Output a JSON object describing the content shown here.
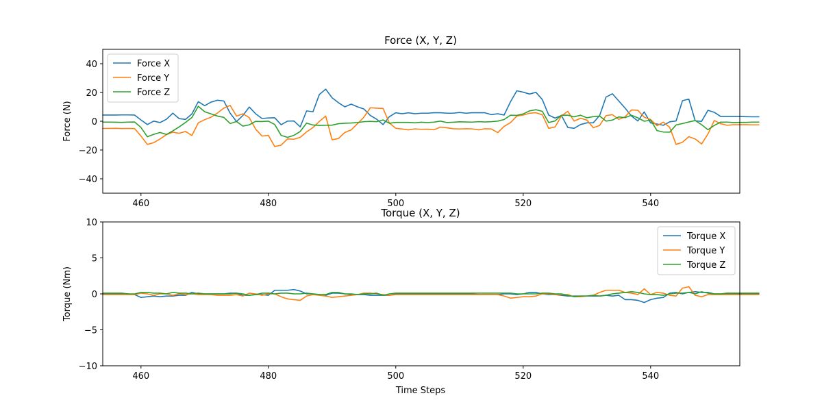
{
  "chart_data": [
    {
      "type": "line",
      "title": "Force (X, Y, Z)",
      "xlabel": "",
      "ylabel": "Force (N)",
      "xlim": [
        454,
        554
      ],
      "ylim": [
        -50,
        50
      ],
      "xticks": [
        460,
        480,
        500,
        520,
        540
      ],
      "yticks": [
        -40,
        -20,
        0,
        20,
        40
      ],
      "grid": false,
      "legend_position": "upper-left",
      "x_start": 454,
      "series": [
        {
          "name": "Force X",
          "color": "#1f77b4",
          "values": [
            4.3,
            4.3,
            4.3,
            4.4,
            4.4,
            4.3,
            0.9,
            -2.3,
            0.1,
            -0.9,
            1.4,
            5.6,
            1.8,
            1.3,
            5.1,
            13.6,
            10.8,
            13.3,
            14.6,
            14.1,
            5.6,
            -0.2,
            4.0,
            9.9,
            5.2,
            1.9,
            2.3,
            2.4,
            -2.4,
            0.1,
            0.2,
            -3.9,
            7.2,
            6.6,
            18.6,
            22.3,
            16.3,
            12.9,
            10.0,
            11.9,
            10.0,
            8.5,
            4.0,
            1.4,
            -2.3,
            3.2,
            5.9,
            5.2,
            5.9,
            5.2,
            5.6,
            5.6,
            5.9,
            5.9,
            5.6,
            5.6,
            6.1,
            5.6,
            5.9,
            5.9,
            5.9,
            4.6,
            5.2,
            4.3,
            13.5,
            21.2,
            20.2,
            18.9,
            20.1,
            15.1,
            4.3,
            2.2,
            4.0,
            -4.3,
            -4.9,
            -2.3,
            -1.1,
            -1.1,
            4.0,
            16.8,
            19.1,
            14.1,
            9.1,
            3.6,
            0.2,
            6.5,
            -1.2,
            -1.9,
            -2.8,
            -0.4,
            0.2,
            14.3,
            15.4,
            0.3,
            -0.1,
            7.6,
            6.2,
            3.3,
            3.3,
            3.3,
            3.3,
            3.2,
            3.1,
            3.1
          ]
        },
        {
          "name": "Force Y",
          "color": "#ff7f0e",
          "values": [
            -5.0,
            -5.0,
            -4.9,
            -5.1,
            -5.0,
            -5.1,
            -10.3,
            -16.1,
            -14.9,
            -12.3,
            -9.3,
            -7.6,
            -8.4,
            -7.1,
            -9.9,
            -1.1,
            1.1,
            2.8,
            5.7,
            9.1,
            11.0,
            3.6,
            5.2,
            2.5,
            -5.5,
            -10.3,
            -9.8,
            -17.6,
            -16.6,
            -12.3,
            -12.5,
            -11.2,
            -7.4,
            -4.4,
            -0.1,
            3.6,
            -12.9,
            -12.0,
            -7.8,
            -6.0,
            -1.7,
            2.9,
            9.4,
            9.1,
            8.9,
            -1.3,
            -4.9,
            -5.4,
            -6.0,
            -5.3,
            -5.6,
            -5.5,
            -5.9,
            -4.1,
            -4.5,
            -5.2,
            -5.4,
            -5.2,
            -5.3,
            -6.0,
            -5.2,
            -5.4,
            -7.9,
            -3.6,
            -1.0,
            3.6,
            4.3,
            5.6,
            5.9,
            4.5,
            -4.9,
            -4.0,
            3.7,
            6.9,
            0.1,
            2.1,
            0.8,
            -4.5,
            -2.9,
            3.9,
            4.6,
            1.3,
            3.1,
            7.9,
            7.6,
            2.8,
            1.2,
            -3.1,
            -0.6,
            -4.3,
            -16.1,
            -14.6,
            -10.7,
            -12.3,
            -15.8,
            -8.9,
            0.5,
            -1.7,
            -2.8,
            -2.4,
            -2.4,
            -2.4,
            -2.5,
            -2.5
          ]
        },
        {
          "name": "Force Z",
          "color": "#2ca02c",
          "values": [
            -0.6,
            -0.6,
            -0.7,
            -0.8,
            -0.6,
            -0.5,
            -4.3,
            -10.8,
            -9.1,
            -7.8,
            -9.2,
            -6.7,
            -3.9,
            -0.8,
            2.6,
            10.4,
            6.6,
            5.1,
            3.6,
            2.7,
            -1.6,
            -0.2,
            -3.4,
            -2.5,
            -0.1,
            -0.2,
            0.1,
            -2.3,
            -9.8,
            -11.2,
            -9.8,
            -7.1,
            -1.3,
            -2.6,
            -2.9,
            -2.8,
            -2.7,
            -1.7,
            -1.4,
            -1.2,
            -0.9,
            -0.3,
            -0.1,
            -0.3,
            0.9,
            -1.4,
            -0.8,
            -0.8,
            -0.8,
            -1.1,
            -0.7,
            -1.0,
            -0.6,
            0.1,
            -0.9,
            -0.7,
            -0.4,
            -0.5,
            -0.6,
            -0.3,
            -0.5,
            -0.3,
            0.1,
            1.2,
            4.2,
            4.1,
            5.1,
            7.2,
            8.0,
            6.9,
            -0.9,
            0.2,
            4.2,
            4.2,
            3.1,
            4.2,
            2.4,
            3.2,
            3.6,
            0.1,
            0.8,
            3.0,
            2.5,
            4.2,
            2.4,
            0.0,
            0.8,
            -6.5,
            -7.5,
            -7.6,
            -2.6,
            -1.6,
            -0.5,
            0.5,
            -2.4,
            -5.9,
            -2.9,
            -0.6,
            -0.6,
            -0.9,
            -0.8,
            -0.8,
            -0.6,
            -0.6
          ]
        }
      ]
    },
    {
      "type": "line",
      "title": "Torque (X, Y, Z)",
      "xlabel": "Time Steps",
      "ylabel": "Torque (Nm)",
      "xlim": [
        454,
        554
      ],
      "ylim": [
        -10,
        10
      ],
      "xticks": [
        460,
        480,
        500,
        520,
        540
      ],
      "yticks": [
        -10,
        -5,
        0,
        5,
        10
      ],
      "grid": false,
      "legend_position": "upper-right",
      "x_start": 454,
      "series": [
        {
          "name": "Torque X",
          "color": "#1f77b4",
          "values": [
            0.0,
            0.0,
            0.0,
            0.0,
            0.0,
            -0.1,
            -0.5,
            -0.4,
            -0.3,
            -0.4,
            -0.3,
            -0.3,
            -0.2,
            -0.2,
            0.2,
            0.0,
            0.0,
            0.0,
            0.0,
            0.0,
            0.1,
            0.1,
            -0.2,
            -0.2,
            -0.1,
            -0.1,
            -0.2,
            0.5,
            0.5,
            0.5,
            0.6,
            0.4,
            0.0,
            0.0,
            -0.1,
            -0.2,
            0.1,
            0.1,
            0.0,
            -0.1,
            -0.1,
            -0.1,
            -0.2,
            -0.2,
            -0.2,
            -0.2,
            0.0,
            0.0,
            0.0,
            0.0,
            0.0,
            0.0,
            0.0,
            0.0,
            0.0,
            0.0,
            0.0,
            0.0,
            0.0,
            -0.1,
            -0.1,
            -0.1,
            -0.1,
            0.0,
            0.0,
            -0.1,
            0.0,
            0.2,
            0.2,
            0.0,
            -0.1,
            -0.1,
            -0.2,
            -0.3,
            -0.3,
            -0.3,
            -0.3,
            -0.3,
            -0.3,
            -0.2,
            -0.3,
            -0.2,
            -0.8,
            -0.8,
            -0.9,
            -1.2,
            -0.8,
            -0.6,
            -0.5,
            0.1,
            0.2,
            0.0,
            0.2,
            0.3,
            0.2,
            0.2,
            0.0,
            0.0,
            0.0,
            0.0,
            0.0,
            0.0,
            0.0,
            0.0
          ]
        },
        {
          "name": "Torque Y",
          "color": "#ff7f0e",
          "values": [
            -0.1,
            -0.1,
            -0.1,
            -0.1,
            -0.1,
            -0.1,
            0.1,
            0.0,
            -0.2,
            0.0,
            0.0,
            -0.2,
            0.0,
            -0.1,
            0.0,
            -0.1,
            -0.1,
            -0.1,
            -0.2,
            -0.2,
            -0.2,
            -0.1,
            -0.3,
            0.1,
            0.0,
            -0.2,
            0.0,
            0.0,
            -0.4,
            -0.7,
            -0.8,
            -0.9,
            -0.3,
            -0.1,
            -0.2,
            -0.3,
            -0.5,
            -0.4,
            -0.3,
            -0.2,
            -0.1,
            0.1,
            0.1,
            0.0,
            -0.1,
            -0.2,
            -0.1,
            -0.1,
            -0.1,
            -0.1,
            -0.1,
            -0.1,
            -0.1,
            -0.1,
            -0.1,
            -0.1,
            -0.1,
            -0.1,
            -0.1,
            -0.1,
            -0.1,
            -0.1,
            -0.1,
            -0.3,
            -0.6,
            -0.5,
            -0.4,
            -0.4,
            -0.3,
            0.0,
            0.0,
            -0.1,
            -0.1,
            -0.1,
            -0.4,
            -0.4,
            -0.3,
            -0.2,
            0.2,
            0.5,
            0.5,
            0.5,
            0.2,
            0.1,
            -0.1,
            0.7,
            -0.1,
            0.2,
            0.1,
            -0.2,
            -0.3,
            0.8,
            1.0,
            -0.2,
            -0.4,
            -0.1,
            -0.1,
            -0.1,
            -0.1,
            -0.1,
            -0.1,
            -0.1,
            -0.1,
            -0.1
          ]
        },
        {
          "name": "Torque Z",
          "color": "#2ca02c",
          "values": [
            0.1,
            0.1,
            0.1,
            0.1,
            0.0,
            0.0,
            0.2,
            0.2,
            0.1,
            0.1,
            0.0,
            0.2,
            0.1,
            0.1,
            0.0,
            0.1,
            0.0,
            0.0,
            0.0,
            0.0,
            0.0,
            0.1,
            0.0,
            -0.2,
            -0.1,
            0.1,
            0.1,
            0.0,
            0.1,
            0.1,
            0.0,
            0.0,
            0.1,
            0.0,
            -0.1,
            -0.1,
            0.2,
            0.2,
            0.0,
            0.0,
            -0.1,
            0.0,
            0.0,
            0.1,
            -0.2,
            0.0,
            0.1,
            0.1,
            0.1,
            0.1,
            0.1,
            0.1,
            0.1,
            0.1,
            0.1,
            0.1,
            0.1,
            0.1,
            0.1,
            0.1,
            0.1,
            0.1,
            0.1,
            0.1,
            0.1,
            0.0,
            0.0,
            0.0,
            0.0,
            0.1,
            0.1,
            0.0,
            0.0,
            -0.2,
            -0.4,
            -0.3,
            -0.3,
            -0.2,
            -0.3,
            -0.2,
            0.0,
            0.1,
            0.2,
            0.3,
            0.2,
            0.0,
            -0.1,
            -0.1,
            -0.2,
            0.0,
            0.1,
            0.1,
            0.2,
            0.0,
            0.3,
            0.1,
            0.0,
            0.0,
            0.1,
            0.1,
            0.1,
            0.1,
            0.1,
            0.1
          ]
        }
      ]
    }
  ]
}
